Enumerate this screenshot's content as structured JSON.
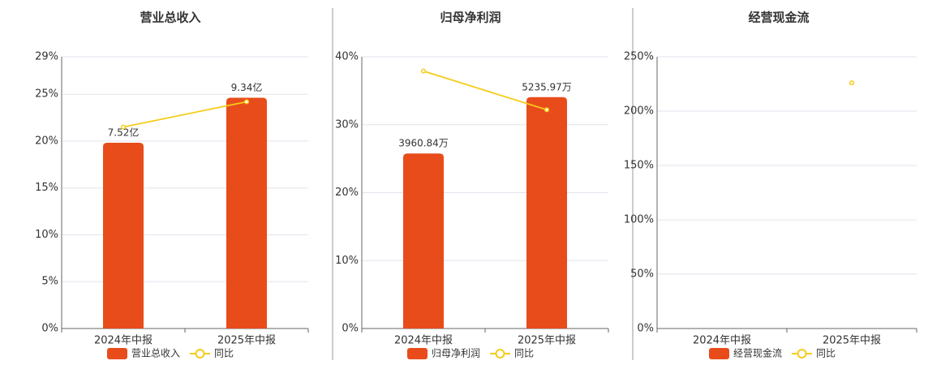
{
  "chart_data": [
    {
      "type": "bar",
      "title": "营业总收入",
      "categories": [
        "2024年中报",
        "2025年中报"
      ],
      "series": [
        {
          "name": "营业总收入",
          "type": "bar",
          "axis": "y2",
          "color": "#e84c1b",
          "values": [
            7.52,
            9.34
          ],
          "value_labels": [
            "7.52亿",
            "9.34亿"
          ]
        },
        {
          "name": "同比",
          "type": "line",
          "color": "#f5cc1a",
          "values": [
            21.5,
            24.2
          ]
        }
      ],
      "ylim": [
        0,
        29
      ],
      "yticks": [
        {
          "value": 0,
          "label": "0%"
        },
        {
          "value": 5,
          "label": "5%"
        },
        {
          "value": 10,
          "label": "10%"
        },
        {
          "value": 15,
          "label": "15%"
        },
        {
          "value": 20,
          "label": "20%"
        },
        {
          "value": 25,
          "label": "25%"
        },
        {
          "value": 29,
          "label": "29%"
        }
      ],
      "y2lim": [
        0,
        11
      ],
      "grid": true
    },
    {
      "type": "bar",
      "title": "归母净利润",
      "categories": [
        "2024年中报",
        "2025年中报"
      ],
      "series": [
        {
          "name": "归母净利润",
          "type": "bar",
          "axis": "y2",
          "color": "#e84c1b",
          "values": [
            3960.84,
            5235.97
          ],
          "value_labels": [
            "3960.84万",
            "5235.97万"
          ]
        },
        {
          "name": "同比",
          "type": "line",
          "color": "#f5cc1a",
          "values": [
            37.9,
            32.2
          ]
        }
      ],
      "ylim": [
        0,
        40
      ],
      "yticks": [
        {
          "value": 0,
          "label": "0%"
        },
        {
          "value": 10,
          "label": "10%"
        },
        {
          "value": 20,
          "label": "20%"
        },
        {
          "value": 30,
          "label": "30%"
        },
        {
          "value": 40,
          "label": "40%"
        }
      ],
      "y2lim": [
        0,
        6150
      ],
      "grid": true
    },
    {
      "type": "bar",
      "title": "经营现金流",
      "categories": [
        "2024年中报",
        "2025年中报"
      ],
      "series": [
        {
          "name": "经营现金流",
          "type": "bar",
          "axis": "y2",
          "color": "#e84c1b",
          "values": [
            null,
            null
          ]
        },
        {
          "name": "同比",
          "type": "line",
          "color": "#f5cc1a",
          "values": [
            null,
            226
          ]
        }
      ],
      "ylim": [
        0,
        250
      ],
      "yticks": [
        {
          "value": 0,
          "label": "0%"
        },
        {
          "value": 50,
          "label": "50%"
        },
        {
          "value": 100,
          "label": "100%"
        },
        {
          "value": 150,
          "label": "150%"
        },
        {
          "value": 200,
          "label": "200%"
        },
        {
          "value": 250,
          "label": "250%"
        }
      ],
      "grid": true
    }
  ]
}
